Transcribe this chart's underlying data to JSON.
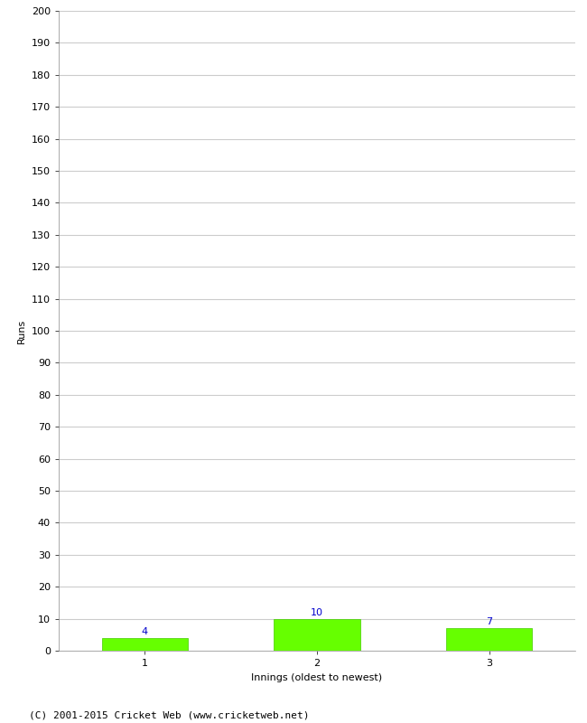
{
  "categories": [
    1,
    2,
    3
  ],
  "values": [
    4,
    10,
    7
  ],
  "bar_color": "#66ff00",
  "bar_edge_color": "#44cc00",
  "value_label_color": "#0000cc",
  "ylabel": "Runs",
  "xlabel": "Innings (oldest to newest)",
  "ylim": [
    0,
    200
  ],
  "yticks": [
    0,
    10,
    20,
    30,
    40,
    50,
    60,
    70,
    80,
    90,
    100,
    110,
    120,
    130,
    140,
    150,
    160,
    170,
    180,
    190,
    200
  ],
  "background_color": "#ffffff",
  "grid_color": "#cccccc",
  "footer": "(C) 2001-2015 Cricket Web (www.cricketweb.net)",
  "value_fontsize": 8,
  "axis_label_fontsize": 8,
  "tick_fontsize": 8,
  "footer_fontsize": 8,
  "bar_width": 0.5
}
